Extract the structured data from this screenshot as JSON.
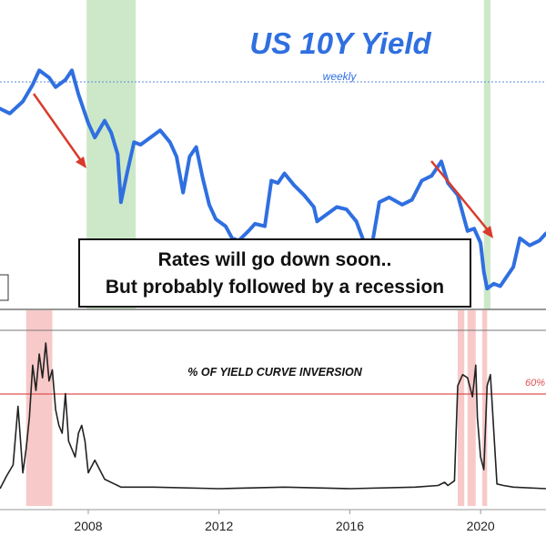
{
  "chart_data": [
    {
      "type": "line",
      "title": "US 10Y Yield",
      "subtitle": "weekly",
      "annotation": "Rates will go down soon..\nBut probably followed by a recession",
      "annotation_lines": [
        "Rates will go down soon..",
        "But probably followed by a recession"
      ],
      "x_range": [
        2005.3,
        2022.0
      ],
      "recession_shading": [
        [
          2007.95,
          2009.45
        ],
        [
          2020.1,
          2020.3
        ]
      ],
      "colors": {
        "line": "#2f6fe0",
        "title": "#2f6fe0",
        "recession": "#cde8c8",
        "arrow": "#d93a2b"
      },
      "series": [
        {
          "values_x": [
            2005.3,
            2005.6,
            2006.0,
            2006.3,
            2006.5,
            2006.8,
            2007.0,
            2007.3,
            2007.5,
            2007.7,
            2008.0,
            2008.2,
            2008.5,
            2008.7,
            2008.9,
            2009.0,
            2009.2,
            2009.4,
            2009.6,
            2009.9,
            2010.2,
            2010.5,
            2010.7,
            2010.9,
            2011.1,
            2011.3,
            2011.5,
            2011.7,
            2011.9,
            2012.2,
            2012.4,
            2012.6,
            2012.9,
            2013.1,
            2013.4,
            2013.6,
            2013.8,
            2014.0,
            2014.3,
            2014.6,
            2014.9,
            2015.0,
            2015.3,
            2015.6,
            2015.9,
            2016.2,
            2016.5,
            2016.7,
            2016.9,
            2017.2,
            2017.6,
            2017.9,
            2018.2,
            2018.5,
            2018.8,
            2019.0,
            2019.3,
            2019.6,
            2019.8,
            2020.0,
            2020.1,
            2020.2,
            2020.4,
            2020.6,
            2020.8,
            2021.0,
            2021.2,
            2021.5,
            2021.8,
            2022.0
          ],
          "values_y": [
            4.3,
            4.2,
            4.45,
            4.8,
            5.1,
            4.95,
            4.75,
            4.9,
            5.1,
            4.6,
            4.0,
            3.7,
            4.05,
            3.8,
            3.35,
            2.35,
            3.0,
            3.6,
            3.55,
            3.7,
            3.85,
            3.6,
            3.3,
            2.55,
            3.3,
            3.5,
            2.85,
            2.3,
            2.0,
            1.85,
            1.6,
            1.55,
            1.75,
            1.9,
            1.85,
            2.8,
            2.75,
            2.95,
            2.7,
            2.5,
            2.25,
            1.95,
            2.1,
            2.25,
            2.2,
            1.95,
            1.4,
            1.55,
            2.35,
            2.45,
            2.3,
            2.4,
            2.8,
            2.9,
            3.2,
            2.75,
            2.5,
            1.75,
            1.8,
            1.5,
            0.9,
            0.55,
            0.65,
            0.6,
            0.8,
            1.0,
            1.6,
            1.45,
            1.55,
            1.7
          ]
        }
      ]
    },
    {
      "type": "area",
      "title": "% OF YIELD CURVE INVERSION",
      "threshold_label": "60%",
      "x_tick_labels": [
        "2008",
        "2012",
        "2016",
        "2020"
      ],
      "x_ticks": [
        2008,
        2012,
        2016,
        2020
      ],
      "x_range": [
        2005.3,
        2022.0
      ],
      "y_range": [
        0,
        100
      ],
      "threshold": 60,
      "highlight_zones": [
        [
          2006.1,
          2006.9
        ],
        [
          2019.3,
          2019.5
        ],
        [
          2019.6,
          2019.85
        ],
        [
          2020.05,
          2020.2
        ]
      ],
      "colors": {
        "line": "#222222",
        "highlight": "#f8c9c9",
        "threshold": "#e05050"
      },
      "series": [
        {
          "values_x": [
            2005.3,
            2005.5,
            2005.7,
            2005.85,
            2006.0,
            2006.1,
            2006.2,
            2006.3,
            2006.4,
            2006.5,
            2006.6,
            2006.7,
            2006.8,
            2006.9,
            2007.0,
            2007.1,
            2007.2,
            2007.3,
            2007.4,
            2007.5,
            2007.6,
            2007.7,
            2007.8,
            2007.9,
            2008.0,
            2008.2,
            2008.5,
            2008.8,
            2009.0,
            2010.0,
            2012.0,
            2014.0,
            2016.0,
            2018.0,
            2018.7,
            2018.9,
            2019.0,
            2019.2,
            2019.3,
            2019.45,
            2019.6,
            2019.75,
            2019.85,
            2019.9,
            2020.0,
            2020.1,
            2020.2,
            2020.3,
            2020.5,
            2020.7,
            2021.0,
            2022.0
          ],
          "values_y": [
            0,
            8,
            15,
            52,
            10,
            25,
            45,
            78,
            62,
            85,
            70,
            92,
            68,
            75,
            50,
            40,
            35,
            60,
            30,
            25,
            20,
            35,
            40,
            30,
            10,
            18,
            6,
            3,
            1,
            1,
            0,
            1,
            0,
            1,
            2,
            4,
            2,
            5,
            65,
            72,
            70,
            58,
            78,
            45,
            20,
            12,
            65,
            72,
            3,
            2,
            1,
            0
          ]
        }
      ]
    }
  ]
}
